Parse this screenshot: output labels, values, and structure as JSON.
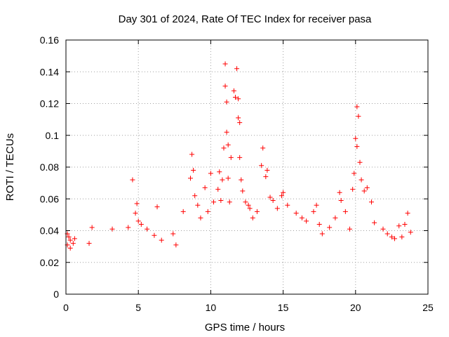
{
  "chart_data": {
    "type": "scatter",
    "title": "Day 301 of 2024, Rate Of TEC Index for receiver pasa",
    "xlabel": "GPS time / hours",
    "ylabel": "ROTI / TECUs",
    "xlim": [
      0,
      25
    ],
    "ylim": [
      0,
      0.16
    ],
    "xticks": [
      "0",
      "5",
      "10",
      "15",
      "20",
      "25"
    ],
    "yticks": [
      "0",
      "0.02",
      "0.04",
      "0.06",
      "0.08",
      "0.1",
      "0.12",
      "0.14",
      "0.16"
    ],
    "grid": true,
    "marker": "+",
    "color": "#ff0000",
    "series": [
      {
        "x": [
          0.1,
          0.1,
          0.2,
          0.3,
          0.3,
          0.5,
          0.6,
          1.6,
          1.8,
          3.2,
          4.3,
          4.6,
          4.8,
          4.9,
          5.0,
          5.2,
          5.6,
          6.1,
          6.3,
          6.6,
          7.4,
          7.6,
          8.1,
          8.6,
          8.7,
          8.8,
          8.9,
          9.1,
          9.3,
          9.6,
          9.8,
          10.0,
          10.2,
          10.5,
          10.6,
          10.7,
          10.8,
          10.9,
          11.0,
          11.0,
          11.1,
          11.1,
          11.2,
          11.2,
          11.3,
          11.4,
          11.6,
          11.7,
          11.8,
          11.9,
          11.9,
          12.0,
          12.0,
          12.1,
          12.2,
          12.4,
          12.6,
          12.7,
          12.9,
          13.2,
          13.5,
          13.6,
          13.8,
          13.9,
          14.1,
          14.3,
          14.6,
          14.9,
          15.0,
          15.3,
          15.9,
          16.3,
          16.6,
          17.1,
          17.3,
          17.5,
          17.7,
          18.2,
          18.6,
          18.9,
          19.0,
          19.3,
          19.6,
          19.8,
          19.9,
          20.0,
          20.1,
          20.1,
          20.2,
          20.3,
          20.4,
          20.6,
          20.8,
          21.1,
          21.3,
          21.9,
          22.2,
          22.5,
          22.7,
          23.0,
          23.2,
          23.4,
          23.6,
          23.8
        ],
        "y": [
          0.038,
          0.031,
          0.036,
          0.029,
          0.034,
          0.032,
          0.035,
          0.032,
          0.042,
          0.041,
          0.042,
          0.072,
          0.051,
          0.057,
          0.046,
          0.044,
          0.041,
          0.037,
          0.055,
          0.034,
          0.038,
          0.031,
          0.052,
          0.073,
          0.088,
          0.078,
          0.062,
          0.056,
          0.048,
          0.067,
          0.052,
          0.076,
          0.058,
          0.066,
          0.077,
          0.059,
          0.072,
          0.092,
          0.145,
          0.131,
          0.121,
          0.102,
          0.094,
          0.073,
          0.058,
          0.086,
          0.128,
          0.124,
          0.142,
          0.123,
          0.111,
          0.108,
          0.086,
          0.072,
          0.065,
          0.058,
          0.056,
          0.054,
          0.048,
          0.052,
          0.081,
          0.092,
          0.074,
          0.078,
          0.061,
          0.059,
          0.054,
          0.062,
          0.064,
          0.056,
          0.051,
          0.048,
          0.046,
          0.052,
          0.056,
          0.044,
          0.038,
          0.042,
          0.048,
          0.064,
          0.059,
          0.052,
          0.041,
          0.066,
          0.076,
          0.098,
          0.093,
          0.118,
          0.112,
          0.083,
          0.072,
          0.065,
          0.067,
          0.058,
          0.045,
          0.041,
          0.038,
          0.036,
          0.035,
          0.043,
          0.036,
          0.044,
          0.051,
          0.039
        ]
      }
    ]
  }
}
